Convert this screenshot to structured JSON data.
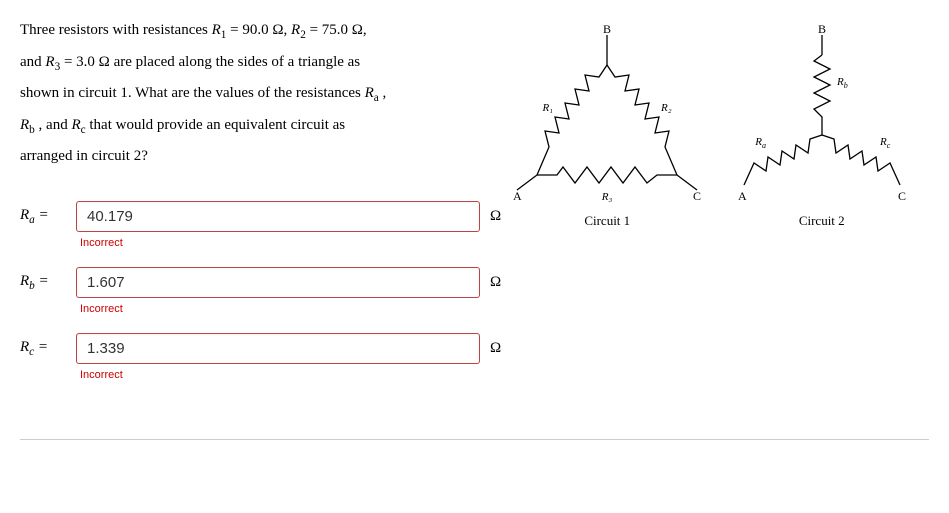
{
  "question": {
    "line1_html": "Three resistors with resistances <i>R</i><sub>1</sub> = 90.0 Ω, <i>R</i><sub>2</sub> = 75.0 Ω,",
    "line2_html": "and <i>R</i><sub>3</sub> = 3.0 Ω are placed along the sides of a triangle as",
    "line3_html": "shown in circuit 1. What are the values of the resistances <i>R</i><sub>a</sub> ,",
    "line4_html": "<i>R</i><sub>b</sub> , and <i>R</i><sub>c</sub> that would provide an equivalent circuit as",
    "line5_html": "arranged in circuit 2?"
  },
  "answers": [
    {
      "label_html": "<i>R</i><sub>a</sub> =",
      "value": "40.179",
      "unit": "Ω",
      "feedback": "Incorrect"
    },
    {
      "label_html": "<i>R</i><sub>b</sub> =",
      "value": "1.607",
      "unit": "Ω",
      "feedback": "Incorrect"
    },
    {
      "label_html": "<i>R</i><sub>c</sub> =",
      "value": "1.339",
      "unit": "Ω",
      "feedback": "Incorrect"
    }
  ],
  "diagrams": {
    "circuit1": {
      "caption": "Circuit 1",
      "nodes": {
        "A": "A",
        "B": "B",
        "C": "C"
      },
      "labels": {
        "R1": "R₁",
        "R2": "R₂",
        "R3": "R₃"
      },
      "stroke": "#000",
      "label_fontsize": 11
    },
    "circuit2": {
      "caption": "Circuit 2",
      "nodes": {
        "A": "A",
        "B": "B",
        "C": "C"
      },
      "labels": {
        "Ra": "Rₐ",
        "Rb": "R_b",
        "Rc": "R_c"
      },
      "stroke": "#000",
      "label_fontsize": 11
    }
  },
  "colors": {
    "input_border_error": "#b44",
    "feedback_text": "#c00",
    "hr": "#cccccc"
  }
}
